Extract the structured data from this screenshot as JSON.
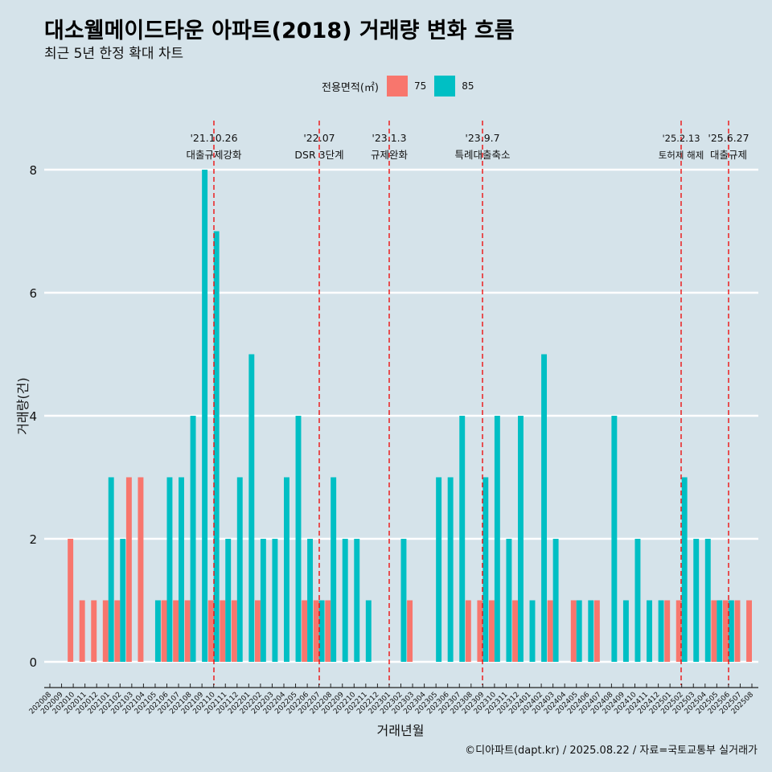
{
  "title": "대소웰메이드타운 아파트(2018) 거래량 변화 흐름",
  "subtitle": "최근 5년 한정 확대 차트",
  "legend": {
    "title": "전용면적(㎡)",
    "items": [
      {
        "label": "75",
        "color": "#f8766d"
      },
      {
        "label": "85",
        "color": "#00bfc4"
      }
    ]
  },
  "caption": "©디아파트(dapt.kr) / 2025.08.22 / 자료=국토교통부 실거래가",
  "chart_data": {
    "type": "bar",
    "xlabel": "거래년월",
    "ylabel": "거래량(건)",
    "ylim": [
      0,
      8.5
    ],
    "yticks": [
      0,
      2,
      4,
      6,
      8
    ],
    "categories": [
      "202008",
      "202009",
      "202010",
      "202011",
      "202012",
      "202101",
      "202102",
      "202103",
      "202104",
      "202105",
      "202106",
      "202107",
      "202108",
      "202109",
      "202110",
      "202111",
      "202112",
      "202201",
      "202202",
      "202203",
      "202204",
      "202205",
      "202206",
      "202207",
      "202208",
      "202209",
      "202210",
      "202211",
      "202212",
      "202301",
      "202302",
      "202303",
      "202304",
      "202305",
      "202306",
      "202307",
      "202308",
      "202309",
      "202310",
      "202311",
      "202312",
      "202401",
      "202402",
      "202403",
      "202404",
      "202405",
      "202406",
      "202407",
      "202408",
      "202409",
      "202410",
      "202411",
      "202412",
      "202501",
      "202502",
      "202503",
      "202504",
      "202505",
      "202506",
      "202507",
      "202508"
    ],
    "series": [
      {
        "name": "75",
        "color": "#f8766d",
        "values": [
          0,
          0,
          2,
          1,
          1,
          1,
          1,
          3,
          3,
          0,
          1,
          1,
          1,
          0,
          1,
          1,
          1,
          0,
          1,
          0,
          0,
          0,
          1,
          1,
          1,
          0,
          0,
          0,
          0,
          0,
          0,
          1,
          0,
          0,
          0,
          0,
          1,
          1,
          1,
          0,
          1,
          0,
          0,
          1,
          0,
          1,
          0,
          1,
          0,
          0,
          0,
          0,
          0,
          1,
          1,
          0,
          0,
          1,
          1,
          1,
          1
        ]
      },
      {
        "name": "85",
        "color": "#00bfc4",
        "values": [
          0,
          0,
          0,
          0,
          0,
          3,
          2,
          0,
          0,
          1,
          3,
          3,
          4,
          8,
          7,
          2,
          3,
          5,
          2,
          2,
          3,
          4,
          2,
          1,
          3,
          2,
          2,
          1,
          0,
          0,
          2,
          0,
          0,
          3,
          3,
          4,
          0,
          3,
          4,
          2,
          4,
          1,
          5,
          2,
          0,
          1,
          1,
          0,
          4,
          1,
          2,
          1,
          1,
          0,
          3,
          2,
          2,
          1,
          1,
          0,
          0
        ]
      }
    ],
    "events": [
      {
        "date": "'21.10.26",
        "label": "대출규제강화"
      },
      {
        "date": "'22.07",
        "label": "DSR 3단계"
      },
      {
        "date": "'23.1.3",
        "label": "규제완화"
      },
      {
        "date": "'23.9.7",
        "label": "특례대출축소"
      },
      {
        "date": "'25.2.13",
        "label": "토허제 해제"
      },
      {
        "date": "'25.6.27",
        "label": "대출규제"
      }
    ]
  }
}
